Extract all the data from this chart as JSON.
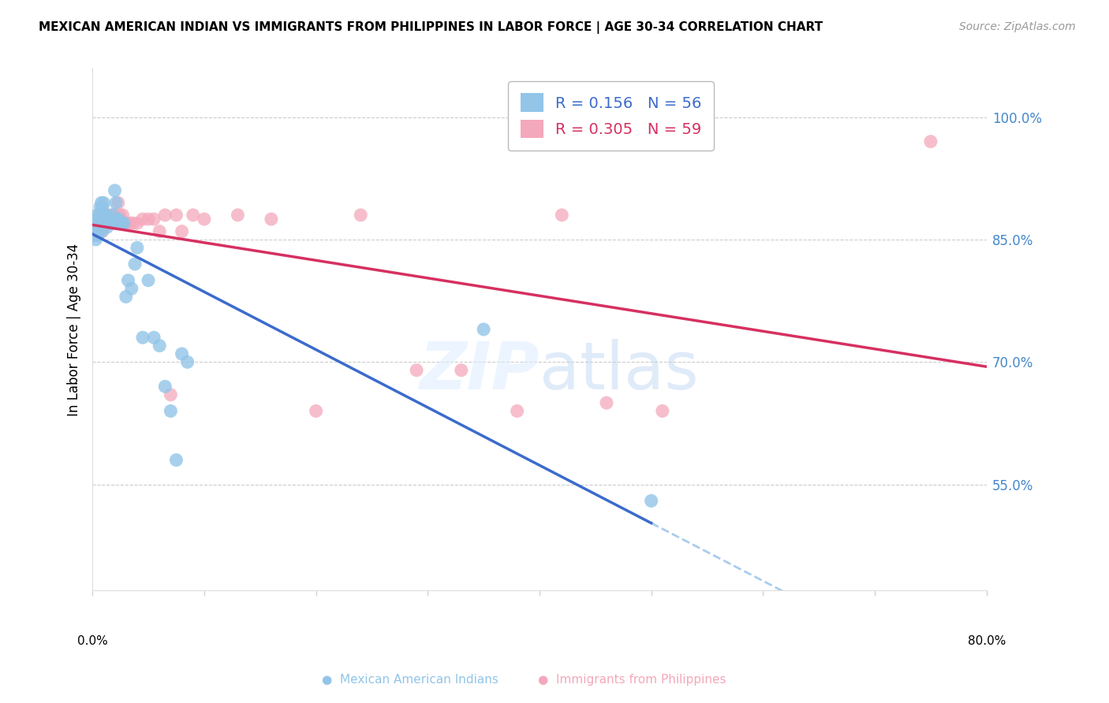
{
  "title": "MEXICAN AMERICAN INDIAN VS IMMIGRANTS FROM PHILIPPINES IN LABOR FORCE | AGE 30-34 CORRELATION CHART",
  "source": "Source: ZipAtlas.com",
  "ylabel": "In Labor Force | Age 30-34",
  "ytick_labels": [
    "100.0%",
    "85.0%",
    "70.0%",
    "55.0%"
  ],
  "ytick_values": [
    1.0,
    0.85,
    0.7,
    0.55
  ],
  "xlim": [
    0.0,
    0.8
  ],
  "ylim": [
    0.42,
    1.06
  ],
  "legend_r_blue": "R = 0.156",
  "legend_n_blue": "N = 56",
  "legend_r_pink": "R = 0.305",
  "legend_n_pink": "N = 59",
  "blue_color": "#92c5e8",
  "pink_color": "#f4a8bb",
  "trend_blue_color": "#3b6bcc",
  "trend_pink_color": "#d63060",
  "trend_blue_dashed_color": "#aaccee",
  "watermark_color": "#ddeeff",
  "legend_label_blue": "Mexican American Indians",
  "legend_label_pink": "Immigrants from Philippines",
  "blue_scatter_x": [
    0.001,
    0.002,
    0.002,
    0.003,
    0.003,
    0.003,
    0.004,
    0.004,
    0.004,
    0.005,
    0.005,
    0.005,
    0.006,
    0.006,
    0.007,
    0.007,
    0.007,
    0.008,
    0.008,
    0.009,
    0.009,
    0.01,
    0.01,
    0.011,
    0.012,
    0.013,
    0.013,
    0.014,
    0.015,
    0.016,
    0.017,
    0.018,
    0.019,
    0.02,
    0.021,
    0.022,
    0.023,
    0.025,
    0.027,
    0.028,
    0.03,
    0.032,
    0.035,
    0.038,
    0.04,
    0.045,
    0.05,
    0.055,
    0.06,
    0.065,
    0.07,
    0.075,
    0.08,
    0.085,
    0.35,
    0.5
  ],
  "blue_scatter_y": [
    0.87,
    0.86,
    0.855,
    0.875,
    0.865,
    0.85,
    0.875,
    0.88,
    0.87,
    0.865,
    0.86,
    0.855,
    0.875,
    0.87,
    0.89,
    0.88,
    0.87,
    0.895,
    0.86,
    0.89,
    0.87,
    0.895,
    0.88,
    0.87,
    0.88,
    0.865,
    0.875,
    0.87,
    0.87,
    0.875,
    0.87,
    0.88,
    0.87,
    0.91,
    0.895,
    0.875,
    0.875,
    0.87,
    0.87,
    0.87,
    0.78,
    0.8,
    0.79,
    0.82,
    0.84,
    0.73,
    0.8,
    0.73,
    0.72,
    0.67,
    0.64,
    0.58,
    0.71,
    0.7,
    0.74,
    0.53
  ],
  "pink_scatter_x": [
    0.001,
    0.002,
    0.003,
    0.003,
    0.004,
    0.004,
    0.005,
    0.005,
    0.006,
    0.006,
    0.007,
    0.007,
    0.008,
    0.008,
    0.009,
    0.009,
    0.01,
    0.01,
    0.011,
    0.012,
    0.013,
    0.014,
    0.015,
    0.016,
    0.017,
    0.018,
    0.019,
    0.02,
    0.021,
    0.022,
    0.023,
    0.024,
    0.025,
    0.027,
    0.03,
    0.033,
    0.036,
    0.04,
    0.045,
    0.05,
    0.055,
    0.06,
    0.065,
    0.07,
    0.075,
    0.08,
    0.09,
    0.1,
    0.13,
    0.16,
    0.2,
    0.24,
    0.29,
    0.33,
    0.38,
    0.42,
    0.46,
    0.51,
    0.75
  ],
  "pink_scatter_y": [
    0.87,
    0.865,
    0.87,
    0.86,
    0.875,
    0.865,
    0.87,
    0.86,
    0.88,
    0.87,
    0.87,
    0.865,
    0.875,
    0.87,
    0.87,
    0.86,
    0.88,
    0.875,
    0.875,
    0.87,
    0.88,
    0.87,
    0.87,
    0.875,
    0.88,
    0.87,
    0.88,
    0.87,
    0.875,
    0.87,
    0.895,
    0.88,
    0.875,
    0.88,
    0.87,
    0.87,
    0.87,
    0.87,
    0.875,
    0.875,
    0.875,
    0.86,
    0.88,
    0.66,
    0.88,
    0.86,
    0.88,
    0.875,
    0.88,
    0.875,
    0.64,
    0.88,
    0.69,
    0.69,
    0.64,
    0.88,
    0.65,
    0.64,
    0.97
  ]
}
